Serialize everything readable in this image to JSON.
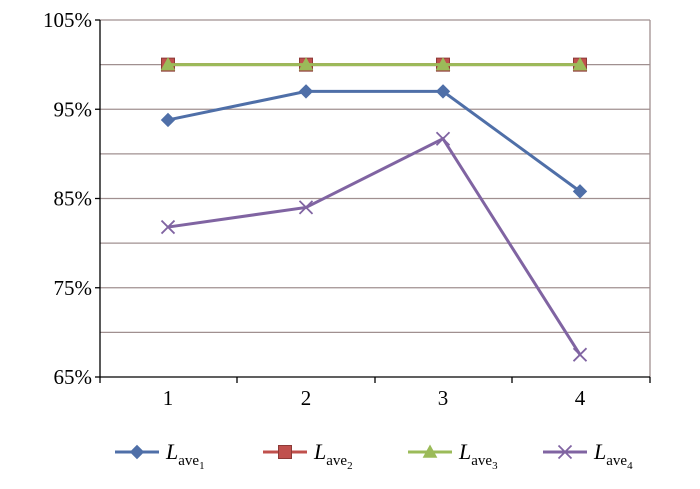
{
  "chart_data": {
    "type": "line",
    "x": [
      "1",
      "2",
      "3",
      "4"
    ],
    "y_ticks": [
      "65%",
      "75%",
      "85%",
      "95%",
      "105%"
    ],
    "ylim": [
      65,
      105
    ],
    "y_unit": "%",
    "grid": true,
    "legend_position": "bottom",
    "series": [
      {
        "name": "L",
        "subscript": "ave",
        "subscript_index": "1",
        "color": "#4f6fa8",
        "marker": "diamond",
        "values": [
          93.8,
          97.0,
          97.0,
          85.8
        ]
      },
      {
        "name": "L",
        "subscript": "ave",
        "subscript_index": "2",
        "color": "#c0504d",
        "marker": "square",
        "values": [
          100.0,
          100.0,
          100.0,
          100.0
        ]
      },
      {
        "name": "L",
        "subscript": "ave",
        "subscript_index": "3",
        "color": "#9bbb59",
        "marker": "triangle",
        "values": [
          100.0,
          100.0,
          100.0,
          100.0
        ]
      },
      {
        "name": "L",
        "subscript": "ave",
        "subscript_index": "4",
        "color": "#8064a2",
        "marker": "x",
        "values": [
          81.8,
          84.0,
          91.7,
          67.5
        ]
      }
    ]
  }
}
